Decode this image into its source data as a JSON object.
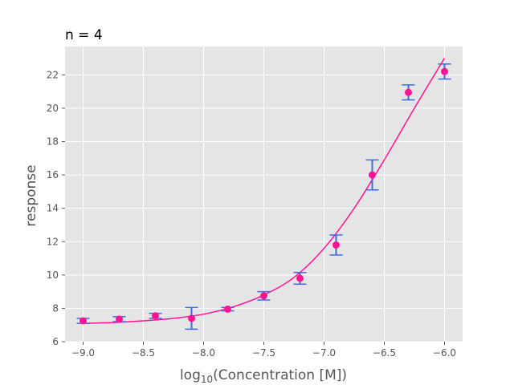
{
  "chart_data": {
    "type": "scatter",
    "title": "n = 4",
    "xlabel": {
      "prefix": "log",
      "subscript": "10",
      "suffix": "(Concentration [M])"
    },
    "ylabel": "response",
    "xlim": [
      -9.15,
      -5.85
    ],
    "ylim": [
      6.0,
      23.7
    ],
    "x_ticks": [
      -9.0,
      -8.5,
      -8.0,
      -7.5,
      -7.0,
      -6.5,
      -6.0
    ],
    "x_tick_labels": [
      "−9.0",
      "−8.5",
      "−8.0",
      "−7.5",
      "−7.0",
      "−6.5",
      "−6.0"
    ],
    "y_ticks": [
      6,
      8,
      10,
      12,
      14,
      16,
      18,
      20,
      22
    ],
    "y_tick_labels": [
      "6",
      "8",
      "10",
      "12",
      "14",
      "16",
      "18",
      "20",
      "22"
    ],
    "grid": true,
    "style": "ggplot",
    "colors": {
      "plot_background": "#e5e5e5",
      "grid": "#ffffff",
      "points": "#ff1493",
      "fit_line": "#ff1493",
      "error_bars": "#4169e1",
      "tick_labels": "#555555"
    },
    "series": [
      {
        "kind": "points_with_error",
        "x": [
          -9.0,
          -8.7,
          -8.4,
          -8.1,
          -7.8,
          -7.5,
          -7.2,
          -6.9,
          -6.6,
          -6.3,
          -6.0
        ],
        "y": [
          7.25,
          7.35,
          7.55,
          7.4,
          7.95,
          8.75,
          9.8,
          11.8,
          16.0,
          20.95,
          22.2
        ],
        "yerr": [
          0.15,
          0.15,
          0.15,
          0.65,
          0.1,
          0.25,
          0.35,
          0.6,
          0.9,
          0.45,
          0.45
        ]
      },
      {
        "kind": "fit_curve",
        "x": [
          -9.0,
          -8.75,
          -8.5,
          -8.25,
          -8.0,
          -7.75,
          -7.5,
          -7.25,
          -7.0,
          -6.75,
          -6.5,
          -6.25,
          -6.0
        ],
        "y": [
          7.1,
          7.15,
          7.25,
          7.4,
          7.65,
          8.1,
          8.8,
          9.85,
          11.6,
          14.0,
          16.9,
          20.0,
          23.0
        ]
      }
    ]
  }
}
